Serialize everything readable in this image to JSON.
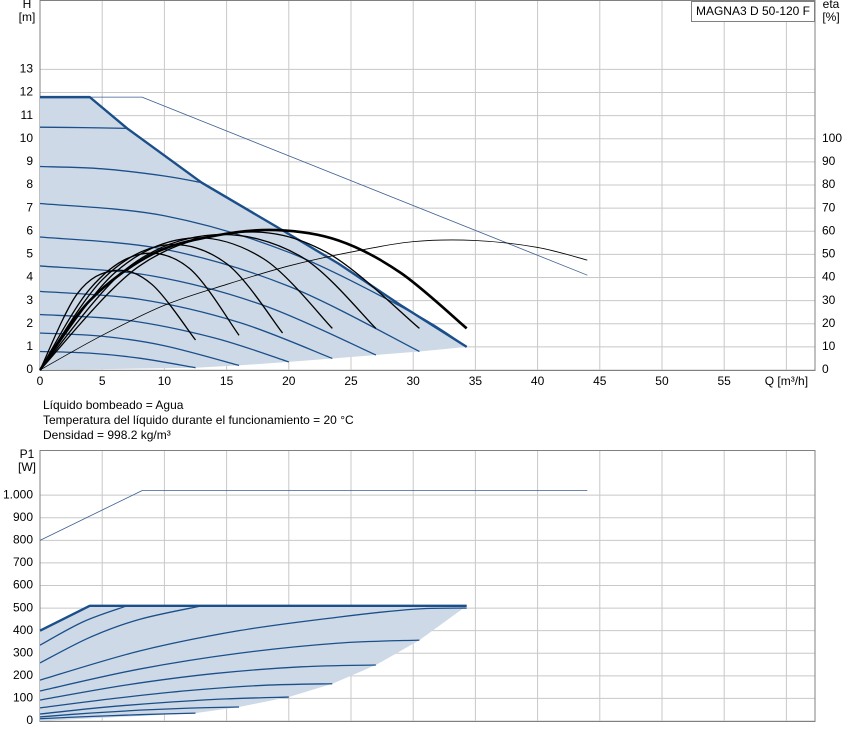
{
  "chart_data": [
    {
      "type": "line",
      "title": "MAGNA3 D 50-120 F",
      "ylabel": "H",
      "yunit": "[m]",
      "y2label": "eta",
      "y2unit": "[%]",
      "xlim": [
        0,
        62.3
      ],
      "xticks": [
        0,
        5,
        10,
        15,
        20,
        25,
        30,
        35,
        40,
        45,
        50,
        55,
        {
          "value": 60,
          "label": "Q [m³/h]"
        }
      ],
      "ylim": [
        0,
        16
      ],
      "yticks": [
        0,
        1,
        2,
        3,
        4,
        5,
        6,
        7,
        8,
        9,
        10,
        11,
        12,
        13
      ],
      "y2lim": [
        0,
        160
      ],
      "y2ticks": [
        0,
        10,
        20,
        30,
        40,
        50,
        60,
        70,
        80,
        90,
        100
      ],
      "grid": true,
      "series": [
        {
          "style": "area",
          "color": "#cdd9e6",
          "x": [
            0,
            0,
            4,
            7,
            13,
            19,
            24,
            29,
            34.3,
            30.5,
            27,
            23.5,
            20,
            16,
            12.5
          ],
          "values": [
            0,
            11.8,
            11.8,
            10.45,
            8.1,
            6.2,
            4.6,
            2.8,
            1.0,
            0.8,
            0.65,
            0.5,
            0.35,
            0.2,
            0.1
          ]
        },
        {
          "style": "thin",
          "color": "#3b5f91",
          "x": [
            0,
            8.2,
            44
          ],
          "values": [
            11.8,
            11.8,
            4.1
          ]
        },
        {
          "style": "bold",
          "color": "#1b4f8a",
          "x": [
            0,
            4,
            7,
            13,
            19,
            24,
            29,
            34.3
          ],
          "values": [
            11.8,
            11.8,
            10.45,
            8.1,
            6.2,
            4.6,
            2.8,
            1.0
          ]
        },
        {
          "style": "normal",
          "smooth": true,
          "color": "#1b4f8a",
          "x": [
            0,
            3.5,
            7
          ],
          "values": [
            10.5,
            10.48,
            10.45
          ]
        },
        {
          "style": "normal",
          "smooth": true,
          "color": "#1b4f8a",
          "x": [
            0,
            5,
            10,
            13
          ],
          "values": [
            8.8,
            8.7,
            8.39,
            8.1
          ]
        },
        {
          "style": "normal",
          "smooth": true,
          "color": "#1b4f8a",
          "x": [
            0,
            10,
            20,
            30,
            34.3
          ],
          "values": [
            7.2,
            6.67,
            5.09,
            2.46,
            1.0
          ]
        },
        {
          "style": "normal",
          "smooth": true,
          "color": "#1b4f8a",
          "x": [
            0,
            10,
            20,
            30.5
          ],
          "values": [
            5.75,
            5.22,
            3.62,
            0.8
          ]
        },
        {
          "style": "normal",
          "smooth": true,
          "color": "#1b4f8a",
          "x": [
            0,
            9,
            18,
            27
          ],
          "values": [
            4.5,
            4.07,
            2.79,
            0.65
          ]
        },
        {
          "style": "normal",
          "smooth": true,
          "color": "#1b4f8a",
          "x": [
            0,
            8,
            16,
            23.5
          ],
          "values": [
            3.4,
            3.06,
            2.06,
            0.5
          ]
        },
        {
          "style": "normal",
          "smooth": true,
          "color": "#1b4f8a",
          "x": [
            0,
            7,
            14,
            20
          ],
          "values": [
            2.4,
            2.15,
            1.39,
            0.35
          ]
        },
        {
          "style": "normal",
          "smooth": true,
          "color": "#1b4f8a",
          "x": [
            0,
            5,
            10,
            16
          ],
          "values": [
            1.6,
            1.46,
            1.05,
            0.2
          ]
        },
        {
          "style": "normal",
          "smooth": true,
          "color": "#1b4f8a",
          "x": [
            0,
            4,
            8,
            12.5
          ],
          "values": [
            0.8,
            0.73,
            0.51,
            0.1
          ]
        },
        {
          "style": "thin",
          "smooth": true,
          "axis": "y2",
          "color": "#000000",
          "x": [
            0,
            5,
            10,
            15,
            20,
            25,
            30,
            35,
            40,
            44
          ],
          "values": [
            0,
            15,
            28,
            37,
            45,
            51,
            55.5,
            56,
            53,
            47.5
          ]
        },
        {
          "style": "normal",
          "smooth": true,
          "axis": "y2",
          "color": "#000000",
          "x": [
            0,
            3,
            6,
            9,
            12.5
          ],
          "values": [
            0,
            33,
            43,
            37,
            13
          ]
        },
        {
          "style": "normal",
          "smooth": true,
          "axis": "y2",
          "color": "#000000",
          "x": [
            0,
            4,
            8,
            12,
            16
          ],
          "values": [
            0,
            35,
            50,
            44,
            15
          ]
        },
        {
          "style": "normal",
          "smooth": true,
          "axis": "y2",
          "color": "#000000",
          "x": [
            0,
            5,
            10,
            15,
            19.5
          ],
          "values": [
            0,
            39,
            54,
            46,
            16
          ]
        },
        {
          "style": "normal",
          "smooth": true,
          "axis": "y2",
          "color": "#000000",
          "x": [
            0,
            6,
            12,
            18,
            23.5
          ],
          "values": [
            0,
            42,
            57,
            48,
            18
          ]
        },
        {
          "style": "normal",
          "smooth": true,
          "axis": "y2",
          "color": "#000000",
          "x": [
            0,
            7,
            14,
            21,
            27
          ],
          "values": [
            0,
            44,
            58.5,
            49,
            18
          ]
        },
        {
          "style": "normal",
          "smooth": true,
          "axis": "y2",
          "color": "#000000",
          "x": [
            0,
            8,
            16,
            23,
            30.5
          ],
          "values": [
            0,
            45,
            59.5,
            51,
            18
          ]
        },
        {
          "style": "heavy",
          "smooth": true,
          "axis": "y2",
          "color": "#000000",
          "x": [
            0,
            4,
            9,
            14,
            19,
            24,
            29,
            34.3
          ],
          "values": [
            0,
            30,
            50,
            58,
            60.5,
            56,
            42,
            18
          ]
        }
      ]
    },
    {
      "type": "line",
      "ylabel": "P1",
      "yunit": "[W]",
      "xlim": [
        0,
        62.3
      ],
      "ylim": [
        0,
        1200
      ],
      "yticks": [
        0,
        100,
        200,
        300,
        400,
        500,
        600,
        700,
        800,
        900,
        {
          "value": 1000,
          "label": "1.000"
        }
      ],
      "grid": true,
      "series": [
        {
          "style": "area",
          "color": "#cdd9e6",
          "x": [
            0,
            0,
            4,
            34.3,
            30.5,
            27,
            23.5,
            20,
            16,
            12.5
          ],
          "values": [
            0,
            400,
            510,
            510,
            358,
            248,
            165,
            106,
            62,
            35
          ]
        },
        {
          "style": "thin",
          "color": "#3b5f91",
          "x": [
            0,
            8.2,
            44
          ],
          "values": [
            800,
            1020,
            1020
          ]
        },
        {
          "style": "bold",
          "color": "#1b4f8a",
          "x": [
            0,
            4,
            34.3
          ],
          "values": [
            400,
            510,
            510
          ]
        },
        {
          "style": "normal",
          "smooth": true,
          "color": "#1b4f8a",
          "x": [
            0,
            3.5,
            7
          ],
          "values": [
            336,
            440,
            510
          ]
        },
        {
          "style": "normal",
          "smooth": true,
          "color": "#1b4f8a",
          "x": [
            0,
            4,
            8,
            13
          ],
          "values": [
            257,
            370,
            450,
            510
          ]
        },
        {
          "style": "normal",
          "smooth": true,
          "color": "#1b4f8a",
          "x": [
            0,
            8,
            16,
            24,
            30,
            34.3
          ],
          "values": [
            181,
            310,
            400,
            460,
            495,
            500
          ]
        },
        {
          "style": "normal",
          "smooth": true,
          "color": "#1b4f8a",
          "x": [
            0,
            8,
            16,
            24,
            30.5
          ],
          "values": [
            133,
            230,
            300,
            345,
            358
          ]
        },
        {
          "style": "normal",
          "smooth": true,
          "color": "#1b4f8a",
          "x": [
            0,
            7,
            14,
            21,
            27
          ],
          "values": [
            93,
            160,
            210,
            240,
            248
          ]
        },
        {
          "style": "normal",
          "smooth": true,
          "color": "#1b4f8a",
          "x": [
            0,
            6,
            12,
            18,
            23.5
          ],
          "values": [
            58,
            100,
            135,
            158,
            165
          ]
        },
        {
          "style": "normal",
          "smooth": true,
          "color": "#1b4f8a",
          "x": [
            0,
            5,
            10,
            15,
            20
          ],
          "values": [
            31,
            60,
            82,
            98,
            106
          ]
        },
        {
          "style": "normal",
          "smooth": true,
          "color": "#1b4f8a",
          "x": [
            0,
            4,
            8,
            12,
            16
          ],
          "values": [
            18,
            35,
            48,
            57,
            62
          ]
        },
        {
          "style": "normal",
          "smooth": true,
          "color": "#1b4f8a",
          "x": [
            0,
            4,
            8,
            12.5
          ],
          "values": [
            10,
            20,
            28,
            35
          ]
        }
      ]
    }
  ],
  "notes": [
    "Líquido bombeado = Agua",
    "Temperatura del líquido durante el funcionamiento = 20 °C",
    "Densidad = 998.2 kg/m³"
  ]
}
